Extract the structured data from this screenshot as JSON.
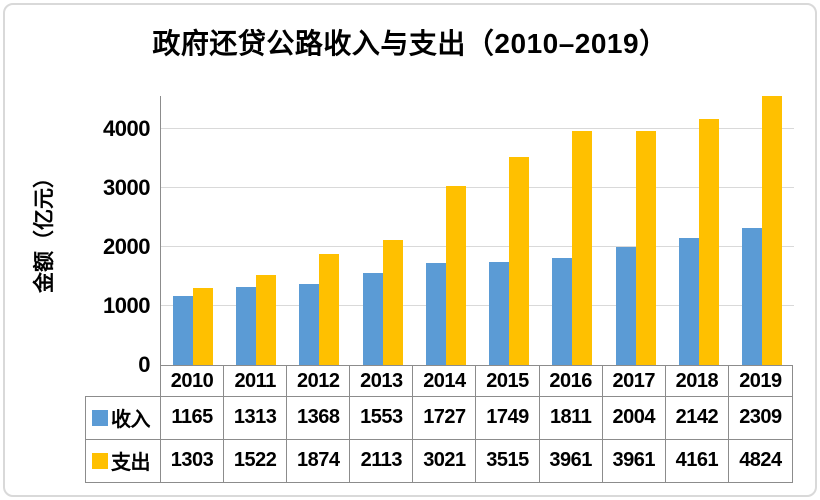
{
  "chart_data": {
    "type": "bar",
    "title": "政府还贷公路收入与支出（2010–2019）",
    "ylabel": "金额（亿元）",
    "xlabel": "",
    "categories": [
      "2010",
      "2011",
      "2012",
      "2013",
      "2014",
      "2015",
      "2016",
      "2017",
      "2018",
      "2019"
    ],
    "series": [
      {
        "name": "收入",
        "color": "#5B9BD5",
        "values": [
          1165,
          1313,
          1368,
          1553,
          1727,
          1749,
          1811,
          2004,
          2142,
          2309
        ]
      },
      {
        "name": "支出",
        "color": "#FFC000",
        "values": [
          1303,
          1522,
          1874,
          2113,
          3021,
          3515,
          3961,
          3961,
          4161,
          4824
        ]
      }
    ],
    "yticks": [
      0,
      1000,
      2000,
      3000,
      4000
    ],
    "ylim": [
      0,
      4550
    ],
    "grid": true,
    "legend_position": "data-table-left",
    "data_table_shown": true
  },
  "colors": {
    "income_bar": "#5B9BD5",
    "expense_bar": "#FFC000",
    "gridline": "#D9D9D9",
    "axis_and_table_border": "#8C8C8C",
    "outer_frame_border": "#D9D9D9",
    "text": "#000000",
    "background": "#FFFFFF"
  }
}
